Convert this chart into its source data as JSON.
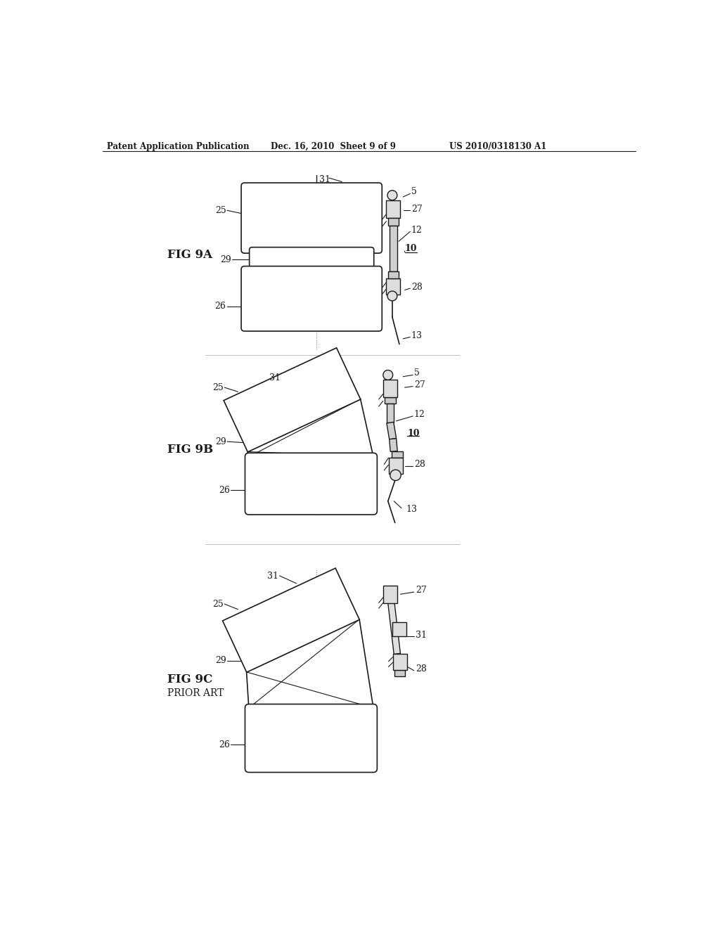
{
  "header_left": "Patent Application Publication",
  "header_mid": "Dec. 16, 2010  Sheet 9 of 9",
  "header_right": "US 2010/0318130 A1",
  "bg_color": "#ffffff",
  "line_color": "#1a1a1a",
  "fig9a_label": "FIG 9A",
  "fig9b_label": "FIG 9B",
  "fig9c_label": "FIG 9C",
  "fig9c_sub": "PRIOR ART"
}
